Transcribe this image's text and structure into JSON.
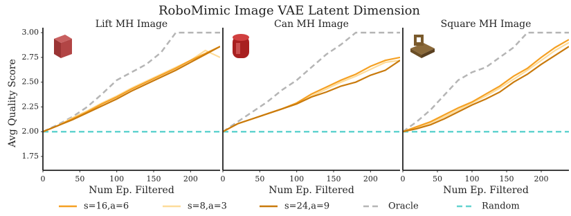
{
  "suptitle": "RoboMimic Image VAE Latent Dimension",
  "chart_data": [
    {
      "type": "line",
      "title": "Lift MH Image",
      "xlabel": "Num Ep. Filtered",
      "ylabel": "Avg Quality Score",
      "x": [
        0,
        20,
        40,
        60,
        80,
        100,
        120,
        140,
        160,
        180,
        200,
        220,
        240
      ],
      "xlim": [
        0,
        240
      ],
      "xticks": [
        0,
        50,
        100,
        150,
        200
      ],
      "ylim": [
        1.61,
        3.05
      ],
      "yticks": [
        {
          "value": 1.75,
          "label": "1.75"
        },
        {
          "value": 2.0,
          "label": "2.00"
        },
        {
          "value": 2.25,
          "label": "2.25"
        },
        {
          "value": 2.5,
          "label": "2.50"
        },
        {
          "value": 2.75,
          "label": "2.75"
        },
        {
          "value": 3.0,
          "label": "3.00"
        }
      ],
      "series": [
        {
          "name": "s=16,a=6",
          "color": "#f5a022",
          "dashed": false,
          "values": [
            2.0,
            2.06,
            2.13,
            2.2,
            2.28,
            2.35,
            2.43,
            2.5,
            2.57,
            2.64,
            2.72,
            2.79,
            2.86
          ]
        },
        {
          "name": "s=8,a=3",
          "color": "#fddc9a",
          "dashed": false,
          "values": [
            2.0,
            2.06,
            2.14,
            2.21,
            2.29,
            2.36,
            2.44,
            2.51,
            2.58,
            2.65,
            2.72,
            2.82,
            2.75
          ]
        },
        {
          "name": "s=24,a=9",
          "color": "#c97a0c",
          "dashed": false,
          "values": [
            2.0,
            2.06,
            2.12,
            2.19,
            2.26,
            2.33,
            2.41,
            2.48,
            2.55,
            2.62,
            2.7,
            2.78,
            2.86
          ]
        },
        {
          "name": "Oracle",
          "color": "#b5b5b5",
          "dashed": true,
          "values": [
            2.0,
            2.07,
            2.15,
            2.25,
            2.38,
            2.52,
            2.6,
            2.68,
            2.8,
            3.0,
            3.0,
            3.0,
            3.0
          ]
        },
        {
          "name": "Random",
          "color": "#62d3cf",
          "dashed": true,
          "values": [
            2.0,
            2.0,
            2.0,
            2.0,
            2.0,
            2.0,
            2.0,
            2.0,
            2.0,
            2.0,
            2.0,
            2.0,
            2.0
          ]
        }
      ]
    },
    {
      "type": "line",
      "title": "Can MH Image",
      "xlabel": "Num Ep. Filtered",
      "x": [
        0,
        20,
        40,
        60,
        80,
        100,
        120,
        140,
        160,
        180,
        200,
        220,
        240
      ],
      "xlim": [
        0,
        240
      ],
      "xticks": [
        0,
        50,
        100,
        150,
        200
      ],
      "ylim": [
        1.61,
        3.05
      ],
      "series": [
        {
          "name": "s=16,a=6",
          "color": "#f5a022",
          "dashed": false,
          "values": [
            2.0,
            2.08,
            2.13,
            2.18,
            2.23,
            2.29,
            2.38,
            2.45,
            2.52,
            2.58,
            2.66,
            2.72,
            2.75
          ]
        },
        {
          "name": "s=8,a=3",
          "color": "#fddc9a",
          "dashed": false,
          "values": [
            2.0,
            2.08,
            2.13,
            2.18,
            2.23,
            2.28,
            2.36,
            2.43,
            2.5,
            2.56,
            2.63,
            2.7,
            2.72
          ]
        },
        {
          "name": "s=24,a=9",
          "color": "#c97a0c",
          "dashed": false,
          "values": [
            2.0,
            2.08,
            2.13,
            2.18,
            2.23,
            2.28,
            2.35,
            2.4,
            2.46,
            2.5,
            2.57,
            2.62,
            2.72
          ]
        },
        {
          "name": "Oracle",
          "color": "#b5b5b5",
          "dashed": true,
          "values": [
            2.0,
            2.1,
            2.2,
            2.3,
            2.42,
            2.52,
            2.65,
            2.78,
            2.88,
            3.0,
            3.0,
            3.0,
            3.0
          ]
        },
        {
          "name": "Random",
          "color": "#62d3cf",
          "dashed": true,
          "values": [
            2.0,
            2.0,
            2.0,
            2.0,
            2.0,
            2.0,
            2.0,
            2.0,
            2.0,
            2.0,
            2.0,
            2.0,
            2.0
          ]
        }
      ]
    },
    {
      "type": "line",
      "title": "Square MH Image",
      "xlabel": "Num Ep. Filtered",
      "x": [
        0,
        20,
        40,
        60,
        80,
        100,
        120,
        140,
        160,
        180,
        200,
        220,
        240
      ],
      "xlim": [
        0,
        240
      ],
      "xticks": [
        0,
        50,
        100,
        150,
        200
      ],
      "ylim": [
        1.61,
        3.05
      ],
      "series": [
        {
          "name": "s=16,a=6",
          "color": "#f5a022",
          "dashed": false,
          "values": [
            2.0,
            2.05,
            2.1,
            2.17,
            2.24,
            2.3,
            2.38,
            2.46,
            2.56,
            2.64,
            2.75,
            2.85,
            2.93
          ]
        },
        {
          "name": "s=8,a=3",
          "color": "#fddc9a",
          "dashed": false,
          "values": [
            2.0,
            2.04,
            2.09,
            2.15,
            2.22,
            2.29,
            2.36,
            2.44,
            2.53,
            2.62,
            2.72,
            2.82,
            2.9
          ]
        },
        {
          "name": "s=24,a=9",
          "color": "#c97a0c",
          "dashed": false,
          "values": [
            2.0,
            2.03,
            2.07,
            2.13,
            2.2,
            2.27,
            2.33,
            2.4,
            2.5,
            2.58,
            2.68,
            2.77,
            2.86
          ]
        },
        {
          "name": "Oracle",
          "color": "#b5b5b5",
          "dashed": true,
          "values": [
            2.0,
            2.1,
            2.22,
            2.37,
            2.52,
            2.6,
            2.65,
            2.75,
            2.85,
            3.0,
            3.0,
            3.0,
            3.0
          ]
        },
        {
          "name": "Random",
          "color": "#62d3cf",
          "dashed": true,
          "values": [
            2.0,
            2.0,
            2.0,
            2.0,
            2.0,
            2.0,
            2.0,
            2.0,
            2.0,
            2.0,
            2.0,
            2.0,
            2.0
          ]
        }
      ]
    }
  ]
}
